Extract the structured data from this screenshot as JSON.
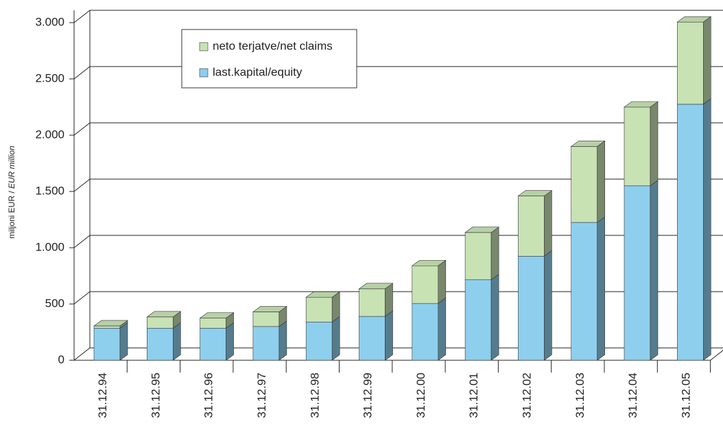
{
  "chart_data": {
    "type": "bar3d_stacked",
    "y_label": "miljoni EUR / ",
    "y_label_en": "EUR million",
    "categories": [
      "31.12.94",
      "31.12.95",
      "31.12.96",
      "31.12.97",
      "31.12.98",
      "31.12.99",
      "31.12.00",
      "31.12.01",
      "31.12.02",
      "31.12.03",
      "31.12.04",
      "31.12.05"
    ],
    "series": [
      {
        "name": "last.kapital/equity",
        "color": "#8ecfed",
        "values": [
          285,
          285,
          285,
          300,
          340,
          390,
          505,
          715,
          925,
          1225,
          1550,
          2275
        ]
      },
      {
        "name": "neto terjatve/net claims",
        "color": "#c8e2b4",
        "values": [
          20,
          100,
          90,
          130,
          220,
          245,
          335,
          420,
          535,
          675,
          700,
          730
        ]
      }
    ],
    "ylim": [
      0,
      3000
    ],
    "yticks": [
      0,
      500,
      {
        "value": 1000,
        "label": "1.000"
      },
      {
        "value": 1500,
        "label": "1.500"
      },
      {
        "value": 2000,
        "label": "2.000"
      },
      {
        "value": 2500,
        "label": "2.500"
      },
      {
        "value": 3000,
        "label": "3.000"
      }
    ],
    "grid": true
  }
}
